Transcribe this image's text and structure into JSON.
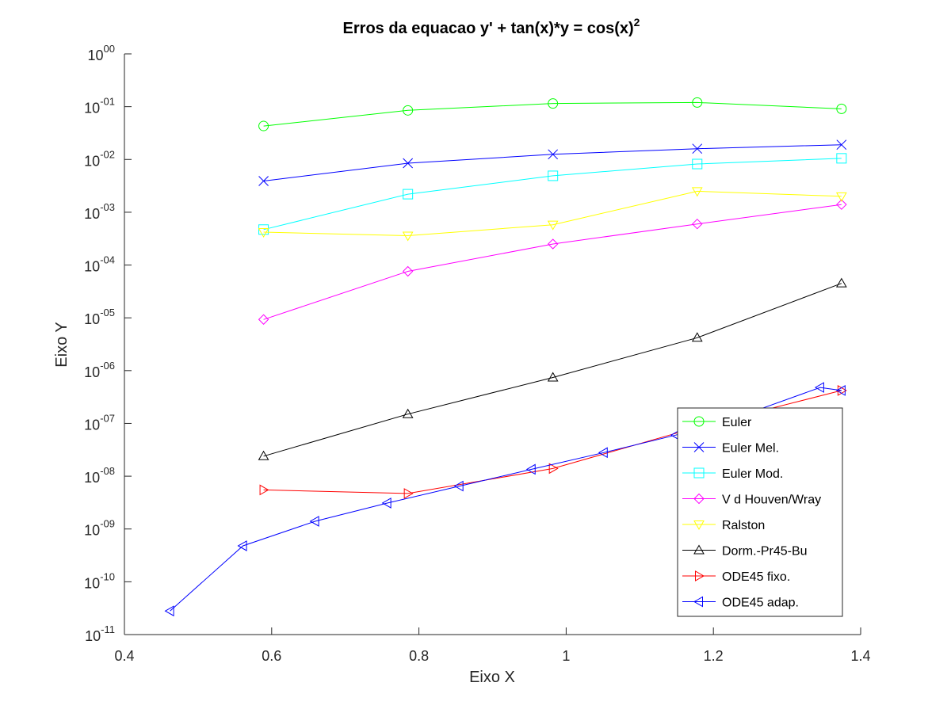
{
  "chart_data": {
    "type": "line",
    "title": "Erros da equacao y' + tan(x)*y = cos(x)",
    "title_superscript": "2",
    "xlabel": "Eixo X",
    "ylabel": "Eixo Y",
    "xlim": [
      0.4,
      1.4
    ],
    "ylim": [
      1e-11,
      1
    ],
    "yscale": "log",
    "grid": false,
    "legend_position": "bottom-right",
    "x_ticks": [
      {
        "value": 0.4,
        "label": "0.4"
      },
      {
        "value": 0.6,
        "label": "0.6"
      },
      {
        "value": 0.8,
        "label": "0.8"
      },
      {
        "value": 1.0,
        "label": "1"
      },
      {
        "value": 1.2,
        "label": "1.2"
      },
      {
        "value": 1.4,
        "label": "1.4"
      }
    ],
    "y_ticks": [
      {
        "exp": 0,
        "base": "10",
        "sup": "00"
      },
      {
        "exp": -1,
        "base": "10",
        "sup": "-01"
      },
      {
        "exp": -2,
        "base": "10",
        "sup": "-02"
      },
      {
        "exp": -3,
        "base": "10",
        "sup": "-03"
      },
      {
        "exp": -4,
        "base": "10",
        "sup": "-04"
      },
      {
        "exp": -5,
        "base": "10",
        "sup": "-05"
      },
      {
        "exp": -6,
        "base": "10",
        "sup": "-06"
      },
      {
        "exp": -7,
        "base": "10",
        "sup": "-07"
      },
      {
        "exp": -8,
        "base": "10",
        "sup": "-08"
      },
      {
        "exp": -9,
        "base": "10",
        "sup": "-09"
      },
      {
        "exp": -10,
        "base": "10",
        "sup": "-10"
      },
      {
        "exp": -11,
        "base": "10",
        "sup": "-11"
      }
    ],
    "series": [
      {
        "name": "Euler",
        "color": "#00ff00",
        "marker": "circle",
        "x": [
          0.589,
          0.785,
          0.982,
          1.178,
          1.374
        ],
        "y": [
          0.043,
          0.085,
          0.115,
          0.12,
          0.091
        ]
      },
      {
        "name": "Euler Mel.",
        "color": "#0000ff",
        "marker": "x",
        "x": [
          0.589,
          0.785,
          0.982,
          1.178,
          1.374
        ],
        "y": [
          0.0039,
          0.0085,
          0.0125,
          0.016,
          0.019
        ]
      },
      {
        "name": "Euler Mod.",
        "color": "#00ffff",
        "marker": "square",
        "x": [
          0.589,
          0.785,
          0.982,
          1.178,
          1.374
        ],
        "y": [
          0.00047,
          0.0022,
          0.0049,
          0.0082,
          0.0105
        ]
      },
      {
        "name": "V d Houven/Wray",
        "color": "#ff00ff",
        "marker": "diamond",
        "x": [
          0.589,
          0.785,
          0.982,
          1.178,
          1.374
        ],
        "y": [
          9.3e-06,
          7.6e-05,
          0.00025,
          0.0006,
          0.0014
        ]
      },
      {
        "name": "Ralston",
        "color": "#ffff00",
        "marker": "triangle-down",
        "x": [
          0.589,
          0.785,
          0.982,
          1.178,
          1.374
        ],
        "y": [
          0.00042,
          0.00036,
          0.00058,
          0.0025,
          0.002
        ]
      },
      {
        "name": "Dorm.-Pr45-Bu",
        "color": "#000000",
        "marker": "triangle-up",
        "x": [
          0.589,
          0.785,
          0.982,
          1.178,
          1.374
        ],
        "y": [
          2.4e-08,
          1.5e-07,
          7.4e-07,
          4.2e-06,
          4.5e-05
        ]
      },
      {
        "name": "ODE45 fixo.",
        "color": "#ff0000",
        "marker": "triangle-right",
        "x": [
          0.589,
          0.785,
          0.982,
          1.178,
          1.374
        ],
        "y": [
          5.5e-09,
          4.7e-09,
          1.4e-08,
          8.5e-08,
          4.2e-07
        ]
      },
      {
        "name": "ODE45 adap.",
        "color": "#0000ff",
        "marker": "triangle-left",
        "x": [
          0.462,
          0.561,
          0.659,
          0.757,
          0.855,
          0.953,
          1.051,
          1.149,
          1.247,
          1.345,
          1.374
        ],
        "y": [
          2.8e-11,
          4.8e-10,
          1.4e-09,
          3.1e-09,
          6.5e-09,
          1.35e-08,
          2.8e-08,
          6e-08,
          1.55e-07,
          4.8e-07,
          4.2e-07
        ]
      }
    ]
  }
}
